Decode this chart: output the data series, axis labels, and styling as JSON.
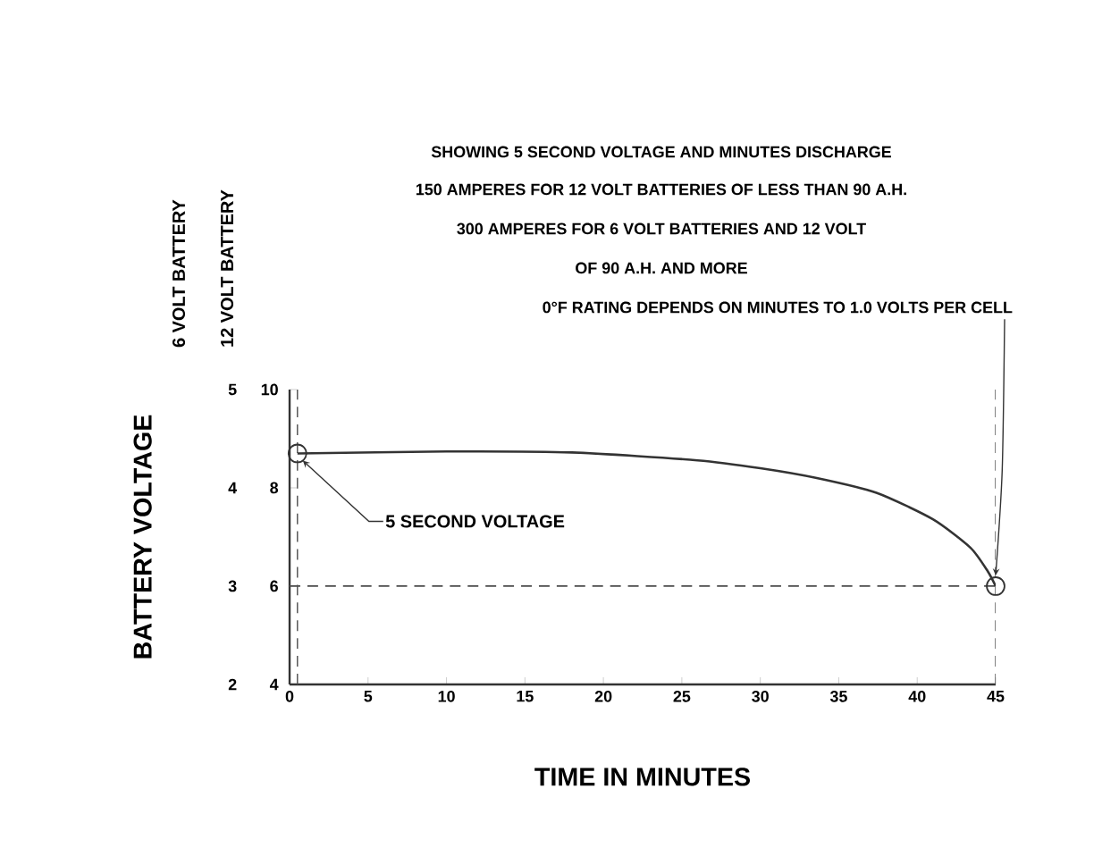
{
  "chart_data": {
    "type": "line",
    "title": "SHOWING 5 SECOND VOLTAGE AND MINUTES DISCHARGE",
    "xlabel": "TIME IN MINUTES",
    "ylabel": "BATTERY VOLTAGE",
    "annotations": [
      "150 AMPERES FOR 12 VOLT BATTERIES OF LESS THAN 90 A.H.",
      "300 AMPERES FOR 6 VOLT BATTERIES AND 12 VOLT",
      "OF 90 A.H. AND MORE",
      {
        "text": "0°F RATING DEPENDS ON MINUTES TO 1.0 VOLTS PER CELL",
        "x": 45,
        "y": 3
      },
      {
        "text": "5 SECOND VOLTAGE",
        "x": 0.5,
        "y": 4.35
      },
      "6 VOLT BATTERY",
      "12 VOLT BATTERY"
    ],
    "series": [
      {
        "type": "line",
        "color": "#333333",
        "marker": "none",
        "x": [
          0.5,
          10,
          18,
          26,
          30,
          33.6,
          37.4,
          41,
          43.4,
          44.5,
          45
        ],
        "values": [
          4.35,
          4.37,
          4.36,
          4.28,
          4.2,
          4.1,
          3.95,
          3.68,
          3.39,
          3.15,
          3.0
        ]
      },
      {
        "type": "scatter",
        "color": "#333333",
        "marker": "circle",
        "x": [
          0.5,
          45
        ],
        "values": [
          4.35,
          3.0
        ]
      }
    ],
    "xlim": [
      0,
      45
    ],
    "xticks": [
      0,
      5,
      10,
      15,
      20,
      25,
      30,
      35,
      40,
      45
    ],
    "ylim": [
      2,
      5
    ],
    "yticks": [
      2,
      3,
      4,
      5
    ],
    "y2lim": [
      4,
      10
    ],
    "y2ticks": [
      4,
      6,
      8,
      10
    ],
    "ref_lines": [
      {
        "axis": "y",
        "value": 3,
        "line_style": "dashed"
      },
      {
        "axis": "x",
        "value": 0.5,
        "line_style": "dashed"
      },
      {
        "axis": "x",
        "value": 45,
        "line_style": "dashed"
      }
    ]
  }
}
